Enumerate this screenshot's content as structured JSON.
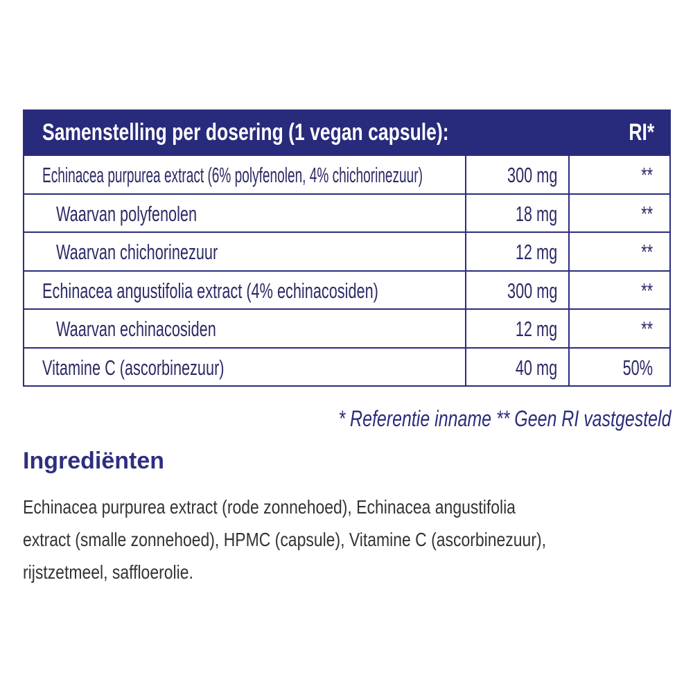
{
  "table": {
    "header": {
      "title": "Samenstelling per dosering (1 vegan capsule):",
      "ri": "RI*"
    },
    "rows": [
      {
        "name": "Echinacea purpurea extract (6% polyfenolen, 4% chichorinezuur)",
        "amount": "300 mg",
        "ri": "**"
      },
      {
        "name": "Waarvan polyfenolen",
        "amount": "18 mg",
        "ri": "**"
      },
      {
        "name": "Waarvan chichorinezuur",
        "amount": "12 mg",
        "ri": "**"
      },
      {
        "name": "Echinacea angustifolia extract (4% echinacosiden)",
        "amount": "300 mg",
        "ri": "**"
      },
      {
        "name": "Waarvan echinacosiden",
        "amount": "12 mg",
        "ri": "**"
      },
      {
        "name": "Vitamine C (ascorbinezuur)",
        "amount": "40 mg",
        "ri": "50%"
      }
    ]
  },
  "footnote": "* Referentie inname  ** Geen RI vastgesteld",
  "ingredients": {
    "heading": "Ingrediënten",
    "lines": [
      "Echinacea purpurea extract (rode zonnehoed), Echinacea angustifolia",
      "extract (smalle zonnehoed), HPMC (capsule), Vitamine C (ascorbinezuur),",
      "rijstzetmeel, saffloerolie."
    ]
  },
  "colors": {
    "header_bg": "#282a7b",
    "text": "#2c2a66",
    "heading": "#2e2f80"
  }
}
